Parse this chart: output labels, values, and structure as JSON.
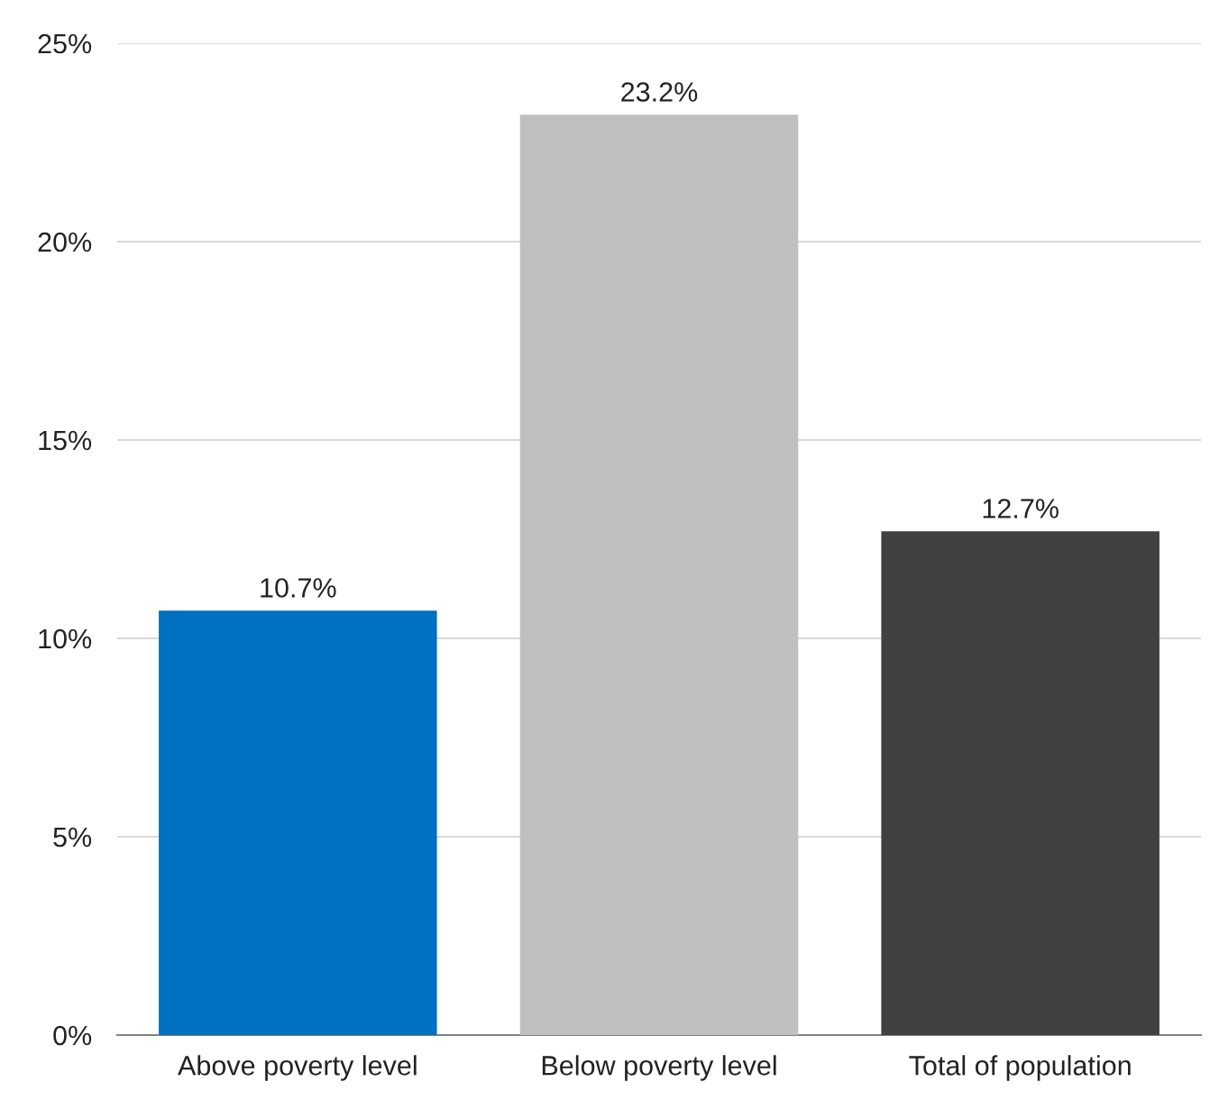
{
  "chart_data": {
    "type": "bar",
    "categories": [
      "Above poverty level",
      "Below poverty level",
      "Total of population"
    ],
    "values": [
      10.7,
      23.2,
      12.7
    ],
    "colors": [
      "#0070c0",
      "#bfbfbf",
      "#404040"
    ],
    "value_labels": [
      "10.7%",
      "23.2%",
      "12.7%"
    ],
    "ylim": [
      0,
      25
    ],
    "yticks": [
      {
        "value": 0,
        "label": "0%"
      },
      {
        "value": 5,
        "label": "5%"
      },
      {
        "value": 10,
        "label": "10%"
      },
      {
        "value": 15,
        "label": "15%"
      },
      {
        "value": 20,
        "label": "20%"
      },
      {
        "value": 25,
        "label": "25%"
      }
    ],
    "grid": "y",
    "legend": false
  }
}
